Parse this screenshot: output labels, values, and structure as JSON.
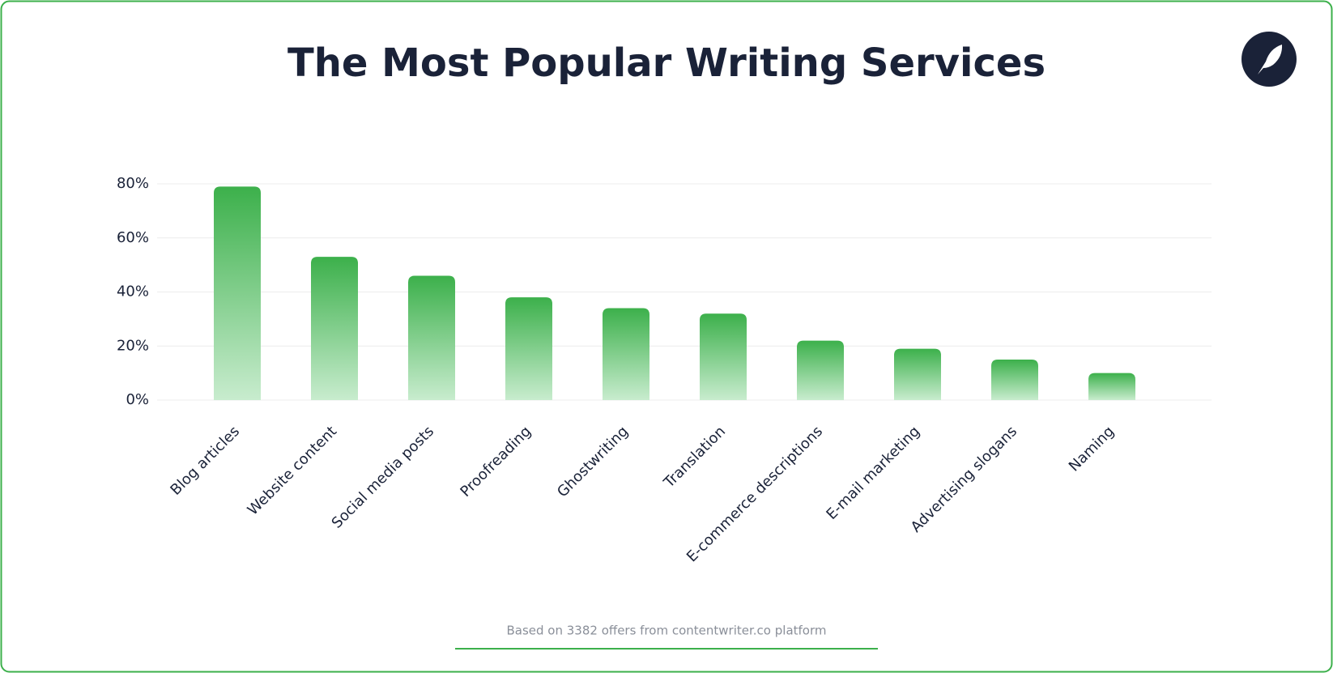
{
  "chart_data": {
    "type": "bar",
    "title": "The Most Popular Writing Services",
    "categories": [
      "Blog articles",
      "Website content",
      "Social media posts",
      "Proofreading",
      "Ghostwriting",
      "Translation",
      "E-commerce descriptions",
      "E-mail marketing",
      "Advertising slogans",
      "Naming"
    ],
    "values": [
      79,
      53,
      46,
      38,
      34,
      32,
      22,
      19,
      15,
      10
    ],
    "color": "#3cb04b",
    "ylim": [
      0,
      80
    ],
    "yticks": [
      {
        "value": 0,
        "label": "0%"
      },
      {
        "value": 20,
        "label": "20%"
      },
      {
        "value": 40,
        "label": "40%"
      },
      {
        "value": 60,
        "label": "60%"
      },
      {
        "value": 80,
        "label": "80%"
      }
    ],
    "grid": true,
    "note": "Based on 3382 offers from contentwriter.co platform"
  }
}
